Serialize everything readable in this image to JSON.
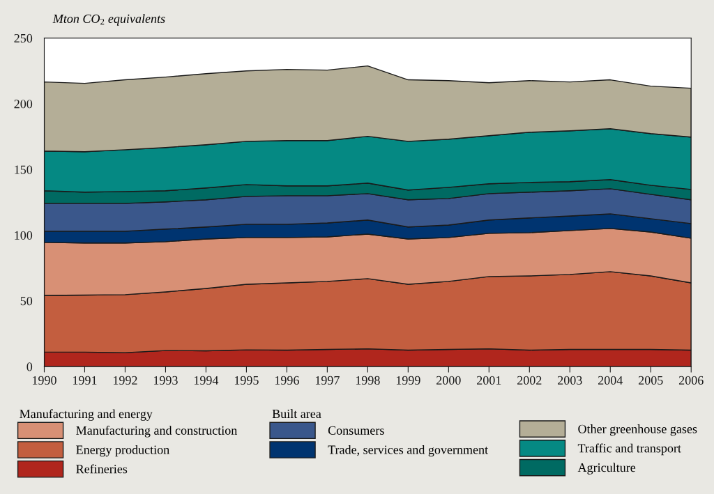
{
  "chart_data": {
    "type": "area",
    "stacked": true,
    "ylabel": "Mton CO$_{2}$ equivalents",
    "x": [
      1990,
      1991,
      1992,
      1993,
      1994,
      1995,
      1996,
      1997,
      1998,
      1999,
      2000,
      2001,
      2002,
      2003,
      2004,
      2005,
      2006
    ],
    "xlim": [
      1990,
      2006
    ],
    "xticks": [
      1990,
      1991,
      1992,
      1993,
      1994,
      1995,
      1996,
      1997,
      1998,
      1999,
      2000,
      2001,
      2002,
      2003,
      2004,
      2005,
      2006
    ],
    "ylim": [
      0,
      250
    ],
    "yticks": [
      0,
      50,
      100,
      150,
      200,
      250
    ],
    "grid": false,
    "legend": "bottom",
    "annotations": [
      "Manufacturing and energy",
      "Built area"
    ],
    "series": [
      {
        "name": "Refineries",
        "color": "#b0261d",
        "values": [
          11.1,
          11,
          10.6,
          12.2,
          12,
          12.7,
          12.5,
          13,
          13.5,
          12.5,
          13,
          13.5,
          12.5,
          13,
          13,
          13,
          12.5
        ]
      },
      {
        "name": "Energy production",
        "color": "#c35e3f",
        "values": [
          43.0,
          43.4,
          44.1,
          44.6,
          47.4,
          49.9,
          51.2,
          51.8,
          53.4,
          50.1,
          51.8,
          55.0,
          56.5,
          57.1,
          59.2,
          56.0,
          51.2
        ]
      },
      {
        "name": "Manufacturing and construction",
        "color": "#d89075",
        "values": [
          40.4,
          39.6,
          39.3,
          38.2,
          37.7,
          35.6,
          34.5,
          33.9,
          33.9,
          34.5,
          33.4,
          32.9,
          32.9,
          33.4,
          32.9,
          33.4,
          34.0
        ]
      },
      {
        "name": "Trade, services and government",
        "color": "#003470",
        "values": [
          8.5,
          9.0,
          9.0,
          9.6,
          9.1,
          10.1,
          10.1,
          10.6,
          10.7,
          9.1,
          9.5,
          10.1,
          11.2,
          11.1,
          11.1,
          10.1,
          11.1
        ]
      },
      {
        "name": "Consumers",
        "color": "#3a578b",
        "values": [
          21.2,
          21.2,
          21.2,
          20.7,
          20.7,
          21.2,
          21.7,
          20.7,
          20.1,
          20.7,
          20.2,
          20.1,
          19.6,
          19.2,
          19.1,
          18.6,
          18.1
        ]
      },
      {
        "name": "Agriculture",
        "color": "#006a62",
        "values": [
          9.6,
          8.5,
          9.0,
          8.5,
          9.0,
          9.0,
          7.5,
          7.5,
          8.0,
          7.4,
          8.5,
          7.5,
          7.4,
          6.9,
          7.0,
          6.9,
          7.9
        ]
      },
      {
        "name": "Traffic and transport",
        "color": "#058983",
        "values": [
          30.2,
          30.8,
          31.8,
          32.9,
          32.9,
          32.9,
          34.5,
          34.5,
          35.6,
          37.1,
          36.6,
          36.6,
          38.2,
          38.7,
          38.7,
          39.3,
          39.8
        ]
      },
      {
        "name": "Other greenhouse gases",
        "color": "#b4ae97",
        "values": [
          52.6,
          52.0,
          53.2,
          53.6,
          54.1,
          53.6,
          54.1,
          53.6,
          53.6,
          46.8,
          44.6,
          40.3,
          39.3,
          37.2,
          37.2,
          36.1,
          37.2
        ]
      }
    ]
  }
}
